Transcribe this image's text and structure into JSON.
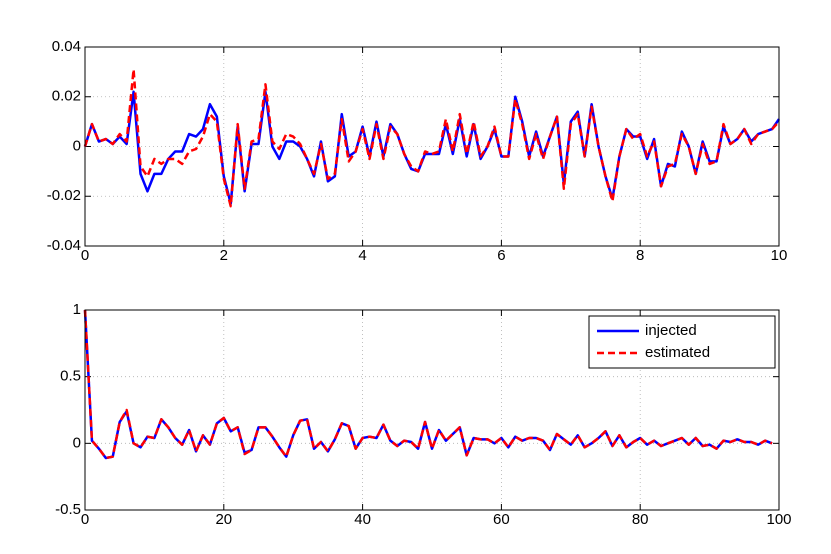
{
  "chart_data": [
    {
      "type": "line",
      "x": [
        0,
        0.1,
        0.2,
        0.3,
        0.4,
        0.5,
        0.6,
        0.7,
        0.8,
        0.9,
        1,
        1.1,
        1.2,
        1.3,
        1.4,
        1.5,
        1.6,
        1.7,
        1.8,
        1.9,
        2,
        2.1,
        2.2,
        2.3,
        2.4,
        2.5,
        2.6,
        2.7,
        2.8,
        2.9,
        3,
        3.1,
        3.2,
        3.3,
        3.4,
        3.5,
        3.6,
        3.7,
        3.8,
        3.9,
        4,
        4.1,
        4.2,
        4.3,
        4.4,
        4.5,
        4.6,
        4.7,
        4.8,
        4.9,
        5,
        5.1,
        5.2,
        5.3,
        5.4,
        5.5,
        5.6,
        5.7,
        5.8,
        5.9,
        6,
        6.1,
        6.2,
        6.3,
        6.4,
        6.5,
        6.6,
        6.7,
        6.8,
        6.9,
        7,
        7.1,
        7.2,
        7.3,
        7.4,
        7.5,
        7.6,
        7.7,
        7.8,
        7.9,
        8,
        8.1,
        8.2,
        8.3,
        8.4,
        8.5,
        8.6,
        8.7,
        8.8,
        8.9,
        9,
        9.1,
        9.2,
        9.3,
        9.4,
        9.5,
        9.6,
        9.7,
        9.8,
        9.9,
        10
      ],
      "series": [
        {
          "color": "#0000ff",
          "linestyle": "solid",
          "values": [
            0,
            0.009,
            0.002,
            0.003,
            0.001,
            0.004,
            0.001,
            0.022,
            -0.011,
            -0.018,
            -0.011,
            -0.011,
            -0.005,
            -0.002,
            -0.002,
            0.005,
            0.004,
            0.007,
            0.017,
            0.012,
            -0.012,
            -0.023,
            0.008,
            -0.018,
            0.001,
            0.001,
            0.022,
            0,
            -0.005,
            0.002,
            0.002,
            0,
            -0.005,
            -0.012,
            0.002,
            -0.014,
            -0.012,
            0.013,
            -0.004,
            -0.002,
            0.008,
            -0.004,
            0.01,
            -0.004,
            0.009,
            0.005,
            -0.003,
            -0.009,
            -0.01,
            -0.003,
            -0.003,
            -0.003,
            0.009,
            -0.003,
            0.011,
            -0.004,
            0.009,
            -0.005,
            0,
            0.007,
            -0.004,
            -0.004,
            0.02,
            0.01,
            -0.004,
            0.006,
            -0.004,
            0.004,
            0.012,
            -0.015,
            0.01,
            0.014,
            -0.004,
            0.017,
            0,
            -0.012,
            -0.021,
            -0.004,
            0.007,
            0.004,
            0.004,
            -0.005,
            0.003,
            -0.016,
            -0.007,
            -0.008,
            0.006,
            0,
            -0.011,
            0.002,
            -0.006,
            -0.006,
            0.008,
            0.001,
            0.003,
            0.007,
            0.002,
            0.005,
            0.006,
            0.007,
            0.011
          ]
        },
        {
          "color": "#ff0000",
          "linestyle": "dashed",
          "values": [
            0,
            0.009,
            0.002,
            0.003,
            0.001,
            0.005,
            0.002,
            0.031,
            -0.008,
            -0.012,
            -0.005,
            -0.007,
            -0.005,
            -0.005,
            -0.007,
            -0.002,
            -0.001,
            0.004,
            0.013,
            0.01,
            -0.013,
            -0.024,
            0.009,
            -0.017,
            0.002,
            0.003,
            0.025,
            0.002,
            -0.001,
            0.005,
            0.004,
            0.001,
            -0.005,
            -0.011,
            0.001,
            -0.013,
            -0.011,
            0.011,
            -0.006,
            -0.002,
            0.007,
            -0.005,
            0.009,
            -0.005,
            0.008,
            0.005,
            -0.003,
            -0.008,
            -0.01,
            -0.002,
            -0.003,
            -0.002,
            0.011,
            -0.002,
            0.013,
            -0.003,
            0.01,
            -0.004,
            0,
            0.008,
            -0.004,
            -0.004,
            0.019,
            0.009,
            -0.005,
            0.005,
            -0.005,
            0.004,
            0.012,
            -0.017,
            0.009,
            0.013,
            -0.004,
            0.016,
            0,
            -0.012,
            -0.022,
            -0.004,
            0.007,
            0.003,
            0.005,
            -0.004,
            0.002,
            -0.016,
            -0.008,
            -0.007,
            0.005,
            0,
            -0.011,
            0.001,
            -0.007,
            -0.006,
            0.009,
            0.001,
            0.003,
            0.007,
            0.001,
            0.005,
            0.006,
            0.007,
            0.01
          ]
        }
      ],
      "xlim": [
        0,
        10
      ],
      "xticks": [
        0,
        2,
        4,
        6,
        8,
        10
      ],
      "ylim": [
        -0.04,
        0.04
      ],
      "yticks": [
        -0.04,
        -0.02,
        0,
        0.02,
        0.04
      ],
      "grid": true
    },
    {
      "type": "line",
      "x": [
        0,
        1,
        2,
        3,
        4,
        5,
        6,
        7,
        8,
        9,
        10,
        11,
        12,
        13,
        14,
        15,
        16,
        17,
        18,
        19,
        20,
        21,
        22,
        23,
        24,
        25,
        26,
        27,
        28,
        29,
        30,
        31,
        32,
        33,
        34,
        35,
        36,
        37,
        38,
        39,
        40,
        41,
        42,
        43,
        44,
        45,
        46,
        47,
        48,
        49,
        50,
        51,
        52,
        53,
        54,
        55,
        56,
        57,
        58,
        59,
        60,
        61,
        62,
        63,
        64,
        65,
        66,
        67,
        68,
        69,
        70,
        71,
        72,
        73,
        74,
        75,
        76,
        77,
        78,
        79,
        80,
        81,
        82,
        83,
        84,
        85,
        86,
        87,
        88,
        89,
        90,
        91,
        92,
        93,
        94,
        95,
        96,
        97,
        98,
        99
      ],
      "series": [
        {
          "name": "injected",
          "color": "#0000ff",
          "linestyle": "solid",
          "values": [
            1,
            0.02,
            -0.04,
            -0.11,
            -0.1,
            0.16,
            0.24,
            0,
            -0.03,
            0.05,
            0.04,
            0.18,
            0.12,
            0.04,
            -0.01,
            0.1,
            -0.06,
            0.06,
            -0.01,
            0.15,
            0.19,
            0.09,
            0.12,
            -0.07,
            -0.05,
            0.12,
            0.12,
            0.05,
            -0.03,
            -0.1,
            0.06,
            0.17,
            0.18,
            -0.04,
            0.01,
            -0.06,
            0.03,
            0.15,
            0.13,
            -0.04,
            0.04,
            0.05,
            0.04,
            0.14,
            0.02,
            -0.02,
            0.02,
            0.01,
            -0.04,
            0.16,
            -0.04,
            0.1,
            0.02,
            0.07,
            0.12,
            -0.09,
            0.04,
            0.03,
            0.03,
            0,
            0.04,
            -0.03,
            0.05,
            0.02,
            0.04,
            0.04,
            0.02,
            -0.05,
            0.07,
            0.03,
            -0.01,
            0.06,
            -0.03,
            0,
            0.04,
            0.09,
            -0.02,
            0.06,
            -0.03,
            0.01,
            0.04,
            -0.01,
            0.02,
            -0.02,
            0,
            0.02,
            0.04,
            -0.01,
            0.04,
            -0.02,
            -0.01,
            -0.04,
            0.02,
            0.01,
            0.03,
            0.01,
            0.01,
            -0.01,
            0.02,
            0
          ]
        },
        {
          "name": "estimated",
          "color": "#ff0000",
          "linestyle": "dashed",
          "values": [
            1,
            0.02,
            -0.04,
            -0.11,
            -0.1,
            0.16,
            0.25,
            0,
            -0.03,
            0.05,
            0.04,
            0.18,
            0.12,
            0.04,
            -0.01,
            0.1,
            -0.06,
            0.06,
            -0.01,
            0.15,
            0.19,
            0.09,
            0.12,
            -0.08,
            -0.05,
            0.12,
            0.12,
            0.05,
            -0.03,
            -0.1,
            0.06,
            0.17,
            0.18,
            -0.04,
            0.01,
            -0.06,
            0.03,
            0.15,
            0.13,
            -0.04,
            0.04,
            0.05,
            0.04,
            0.14,
            0.02,
            -0.02,
            0.02,
            0.01,
            -0.04,
            0.16,
            -0.04,
            0.1,
            0.02,
            0.07,
            0.12,
            -0.09,
            0.04,
            0.03,
            0.03,
            0,
            0.04,
            -0.03,
            0.05,
            0.02,
            0.04,
            0.04,
            0.02,
            -0.05,
            0.07,
            0.03,
            -0.01,
            0.06,
            -0.03,
            0,
            0.04,
            0.09,
            -0.02,
            0.06,
            -0.03,
            0.01,
            0.04,
            -0.01,
            0.02,
            -0.02,
            0,
            0.02,
            0.04,
            -0.01,
            0.04,
            -0.02,
            -0.01,
            -0.04,
            0.02,
            0.01,
            0.03,
            0.01,
            0.01,
            -0.01,
            0.02,
            0
          ]
        }
      ],
      "xlim": [
        0,
        100
      ],
      "xticks": [
        0,
        20,
        40,
        60,
        80,
        100
      ],
      "ylim": [
        -0.5,
        1
      ],
      "yticks": [
        -0.5,
        0,
        0.5,
        1
      ],
      "grid": true,
      "legend": "northeast"
    }
  ]
}
